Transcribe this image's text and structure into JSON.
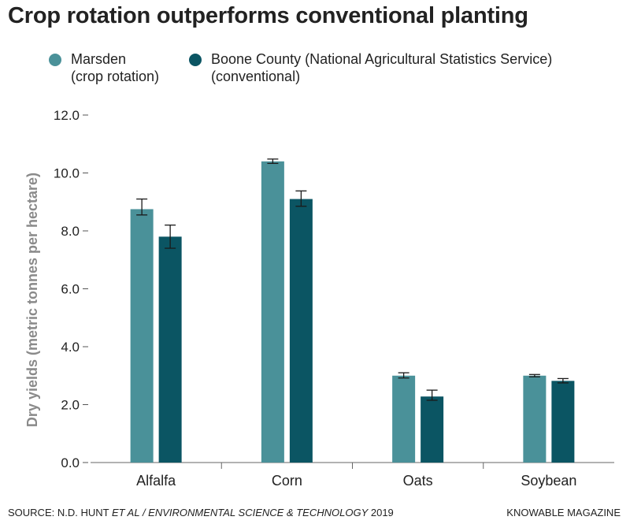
{
  "title": "Crop rotation outperforms conventional planting",
  "legend": [
    {
      "line1": "Marsden",
      "line2": "(crop rotation)",
      "color": "#4a9199"
    },
    {
      "line1": "Boone County (National Agricultural Statistics Service)",
      "line2": "(conventional)",
      "color": "#0b5563"
    }
  ],
  "source": {
    "prefix": "SOURCE: N.D. HUNT ",
    "italic": "ET AL / ENVIRONMENTAL SCIENCE & TECHNOLOGY",
    "suffix": " 2019"
  },
  "credit": "KNOWABLE MAGAZINE",
  "chart_data": {
    "type": "bar",
    "title": "Crop rotation outperforms conventional planting",
    "ylabel": "Dry yields (metric tonnes per hectare)",
    "xlabel": "",
    "ylim": [
      0,
      12
    ],
    "yticks": [
      "0.0",
      "2.0",
      "4.0",
      "6.0",
      "8.0",
      "10.0",
      "12.0"
    ],
    "yticks_values": [
      0,
      2,
      4,
      6,
      8,
      10,
      12
    ],
    "grid": false,
    "legend_position": "top-left",
    "categories": [
      "Alfalfa",
      "Corn",
      "Oats",
      "Soybean"
    ],
    "series": [
      {
        "name": "Marsden (crop rotation)",
        "color": "#4a9199",
        "values": [
          8.75,
          10.4,
          3.0,
          3.0
        ],
        "error_low": [
          8.55,
          10.33,
          2.92,
          2.96
        ],
        "error_high": [
          9.1,
          10.48,
          3.1,
          3.04
        ]
      },
      {
        "name": "Boone County (National Agricultural Statistics Service) (conventional)",
        "color": "#0b5563",
        "values": [
          7.8,
          9.1,
          2.28,
          2.82
        ],
        "error_low": [
          7.4,
          8.85,
          2.15,
          2.75
        ],
        "error_high": [
          8.2,
          9.38,
          2.5,
          2.9
        ]
      }
    ]
  }
}
